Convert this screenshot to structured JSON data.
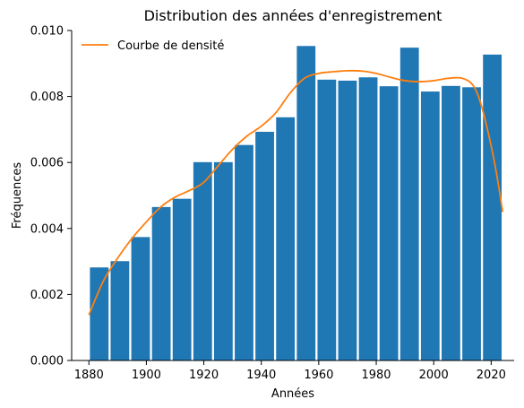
{
  "chart_data": {
    "type": "bar",
    "title": "Distribution des années d'enregistrement",
    "xlabel": "Années",
    "ylabel": "Fréquences",
    "xlim": [
      1874,
      2028
    ],
    "ylim": [
      0,
      0.01
    ],
    "x_ticks": [
      1880,
      1900,
      1920,
      1940,
      1960,
      1980,
      2000,
      2020
    ],
    "y_ticks": [
      0.0,
      0.002,
      0.004,
      0.006,
      0.008,
      0.01
    ],
    "y_tick_labels": [
      "0.000",
      "0.002",
      "0.004",
      "0.006",
      "0.008",
      "0.010"
    ],
    "grid": false,
    "legend_position": "top-left",
    "bar_color": "#1f77b4",
    "curve_color": "#ff7f0e",
    "histogram": {
      "bin_edges": [
        1880,
        1887.2,
        1894.4,
        1901.6,
        1908.8,
        1916,
        1923.2,
        1930.4,
        1937.6,
        1944.8,
        1952,
        1959.2,
        1966.4,
        1973.6,
        1980.8,
        1988,
        1995.2,
        2002.4,
        2009.6,
        2016.8,
        2024
      ],
      "values": [
        0.00282,
        0.00301,
        0.00374,
        0.00465,
        0.0049,
        0.00601,
        0.00601,
        0.00653,
        0.00693,
        0.00737,
        0.00953,
        0.00851,
        0.00848,
        0.00858,
        0.00831,
        0.00948,
        0.00815,
        0.00832,
        0.00828,
        0.00927
      ]
    },
    "series": [
      {
        "name": "Courbe de densité",
        "type": "line",
        "x": [
          1880,
          1885,
          1890,
          1895,
          1900,
          1905,
          1910,
          1915,
          1920,
          1925,
          1930,
          1935,
          1940,
          1945,
          1950,
          1955,
          1960,
          1965,
          1970,
          1975,
          1980,
          1985,
          1990,
          1995,
          2000,
          2005,
          2010,
          2014,
          2017,
          2020,
          2022,
          2024
        ],
        "y": [
          0.00138,
          0.0024,
          0.0031,
          0.0037,
          0.0042,
          0.00465,
          0.00495,
          0.00515,
          0.0054,
          0.0059,
          0.0064,
          0.0068,
          0.0071,
          0.0075,
          0.0081,
          0.00855,
          0.0087,
          0.00875,
          0.00878,
          0.00877,
          0.0087,
          0.00858,
          0.00848,
          0.00845,
          0.00848,
          0.00855,
          0.00855,
          0.0083,
          0.0076,
          0.0065,
          0.0056,
          0.0045
        ]
      }
    ]
  }
}
